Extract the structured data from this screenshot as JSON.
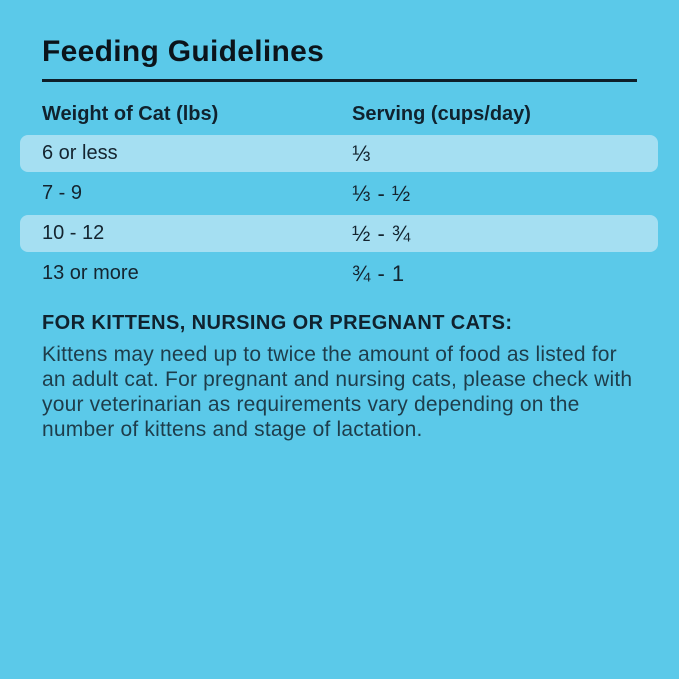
{
  "colors": {
    "background": "#5BC9E9",
    "row_highlight": "#A5DFF2",
    "title_text": "#0B141B",
    "rule": "#0E1F2A",
    "body_text": "#1E3D4B"
  },
  "title": "Feeding Guidelines",
  "table": {
    "columns": [
      "Weight of Cat (lbs)",
      "Serving (cups/day)"
    ],
    "rows": [
      {
        "weight": "6 or less",
        "serving": "⅓",
        "highlighted": true
      },
      {
        "weight": "7 - 9",
        "serving": "⅓ - ½",
        "highlighted": false
      },
      {
        "weight": "10 - 12",
        "serving": "½ - ¾",
        "highlighted": true
      },
      {
        "weight": "13 or more",
        "serving": "¾ - 1",
        "highlighted": false
      }
    ]
  },
  "note": {
    "heading": "FOR KITTENS, NURSING OR PREGNANT CATS:",
    "body": "Kittens may need up to twice the amount of food as listed for an adult cat. For pregnant and nursing cats, please check with your veterinarian as requirements vary depending on the number of kittens and stage of lactation."
  }
}
